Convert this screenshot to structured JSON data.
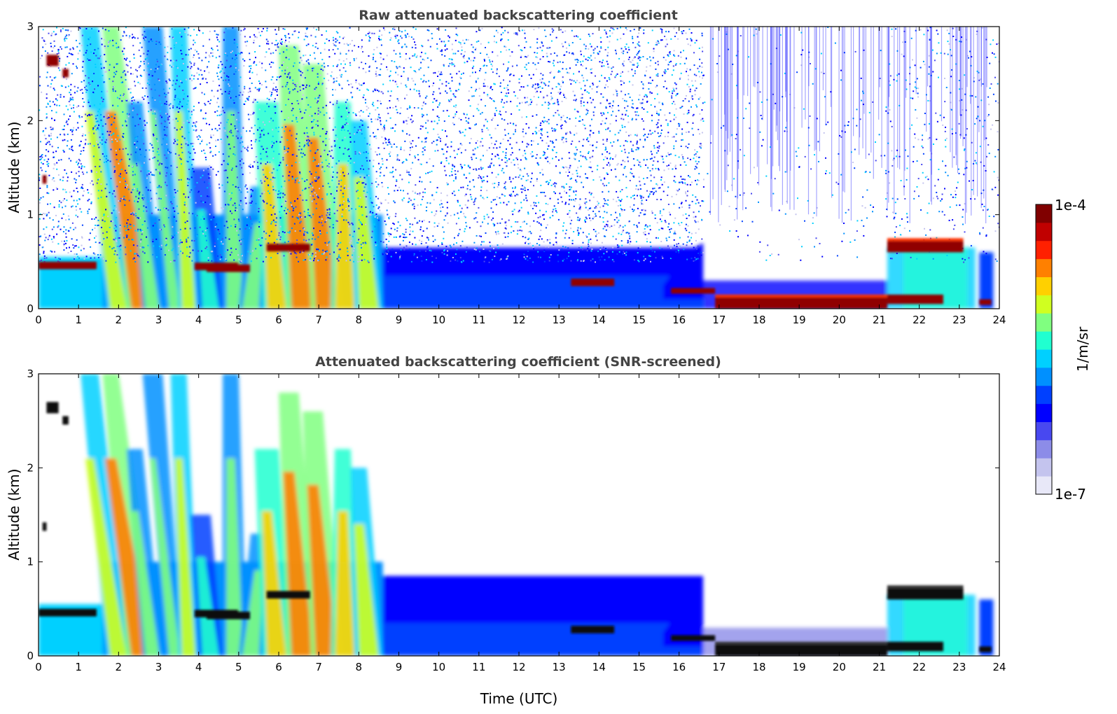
{
  "chart_data": [
    {
      "type": "heatmap",
      "title": "Raw attenuated backscattering coefficient",
      "xlabel": "",
      "ylabel": "Altitude (km)",
      "xlim": [
        0,
        24
      ],
      "ylim": [
        0,
        3
      ],
      "xticks": [
        "0",
        "1",
        "2",
        "3",
        "4",
        "5",
        "6",
        "7",
        "8",
        "9",
        "10",
        "11",
        "12",
        "13",
        "14",
        "15",
        "16",
        "17",
        "18",
        "19",
        "20",
        "21",
        "22",
        "23",
        "24"
      ],
      "yticks": [
        "0",
        "1",
        "2",
        "3"
      ],
      "features": [
        {
          "label": "cloud layer",
          "x": [
            0.0,
            1.5
          ],
          "y": [
            0.42,
            0.5
          ],
          "value": "1e-4"
        },
        {
          "label": "precipitation shafts",
          "x": [
            1.7,
            8.6
          ],
          "y": [
            0.0,
            3.0
          ],
          "value": "5e-6 to 5e-5"
        },
        {
          "label": "boundary layer",
          "x": [
            8.6,
            16.6
          ],
          "y": [
            0.0,
            0.6
          ],
          "value": "5e-7"
        },
        {
          "label": "noise",
          "x": [
            0.0,
            24.0
          ],
          "y": [
            0.5,
            3.0
          ],
          "value": "1e-7 to 1e-6"
        },
        {
          "label": "fog / low cloud",
          "x": [
            16.6,
            21.3
          ],
          "y": [
            0.0,
            0.15
          ],
          "value": "1e-4"
        },
        {
          "label": "elevated cloud",
          "x": [
            21.2,
            23.2
          ],
          "y": [
            0.62,
            0.7
          ],
          "value": "1e-4"
        }
      ]
    },
    {
      "type": "heatmap",
      "title": "Attenuated backscattering coefficient (SNR-screened)",
      "xlabel": "Time (UTC)",
      "ylabel": "Altitude (km)",
      "xlim": [
        0,
        24
      ],
      "ylim": [
        0,
        3
      ],
      "xticks": [
        "0",
        "1",
        "2",
        "3",
        "4",
        "5",
        "6",
        "7",
        "8",
        "9",
        "10",
        "11",
        "12",
        "13",
        "14",
        "15",
        "16",
        "17",
        "18",
        "19",
        "20",
        "21",
        "22",
        "23",
        "24"
      ],
      "yticks": [
        "0",
        "1",
        "2",
        "3"
      ],
      "features": [
        {
          "label": "cloud layer (saturated)",
          "x": [
            0.0,
            1.5
          ],
          "y": [
            0.42,
            0.5
          ],
          "value": "saturated"
        },
        {
          "label": "precipitation shafts",
          "x": [
            1.7,
            8.6
          ],
          "y": [
            0.0,
            2.9
          ],
          "value": "5e-6 to 5e-5"
        },
        {
          "label": "boundary layer",
          "x": [
            8.6,
            16.6
          ],
          "y": [
            0.0,
            0.9
          ],
          "value": "5e-7"
        },
        {
          "label": "fog / low cloud (saturated)",
          "x": [
            16.6,
            21.3
          ],
          "y": [
            0.0,
            0.12
          ],
          "value": "saturated"
        },
        {
          "label": "elevated cloud (saturated)",
          "x": [
            21.2,
            23.2
          ],
          "y": [
            0.6,
            0.7
          ],
          "value": "saturated"
        }
      ]
    }
  ],
  "colorbar": {
    "max_label": "1e-4",
    "min_label": "1e-7",
    "unit_label": "1/m/sr",
    "colors": [
      "#e8e8f8",
      "#c4c4ee",
      "#8c8ce8",
      "#4848f0",
      "#0000ff",
      "#0040ff",
      "#0090ff",
      "#00d0ff",
      "#20ffd0",
      "#80ff80",
      "#d0ff20",
      "#ffd000",
      "#ff8000",
      "#ff2000",
      "#c00000",
      "#800000"
    ]
  }
}
